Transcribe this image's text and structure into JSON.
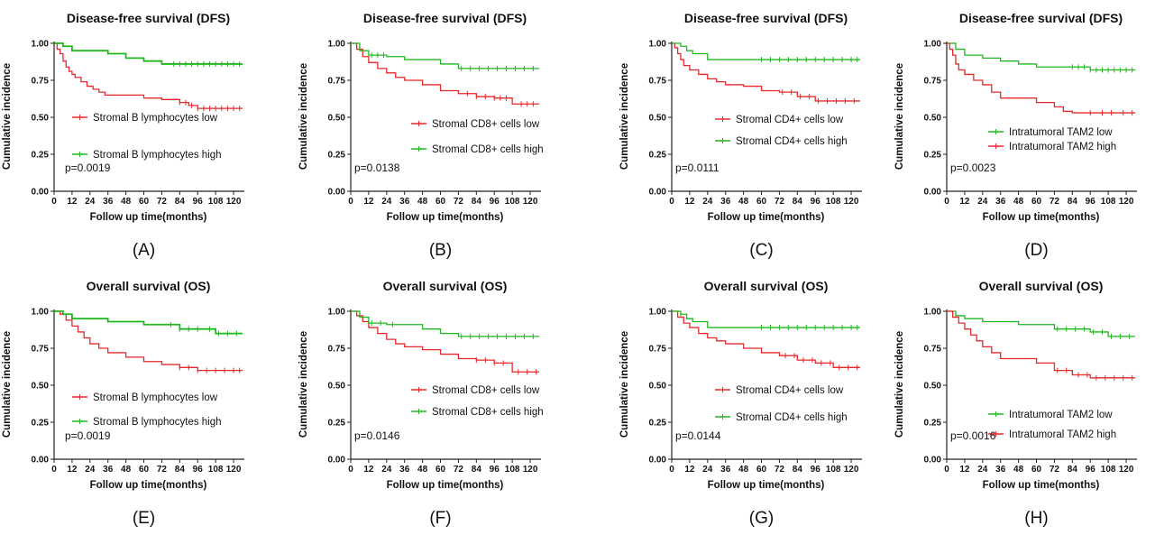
{
  "colors": {
    "low_group": "#e8292b",
    "high_group": "#21b71f",
    "axis": "#222222"
  },
  "chart_data": [
    {
      "type": "line",
      "panel_label": "(A)",
      "title": "Disease-free survival  (DFS)",
      "xlabel": "Follow up time(months)",
      "ylabel": "Cumulative incidence",
      "xlim": [
        0,
        126
      ],
      "ylim": [
        0,
        1.0
      ],
      "xticks": [
        0,
        12,
        24,
        36,
        48,
        60,
        72,
        84,
        96,
        108,
        120
      ],
      "yticks": [
        "0.00",
        "0.25",
        "0.50",
        "0.75",
        "1.00"
      ],
      "p_value": "p=0.0019",
      "series": [
        {
          "name": "Stromal B lymphocytes  low",
          "color": "#e8292b",
          "x": [
            0,
            2,
            4,
            6,
            8,
            10,
            12,
            14,
            18,
            22,
            26,
            30,
            34,
            42,
            60,
            72,
            84,
            90,
            96,
            126
          ],
          "y": [
            1.0,
            0.96,
            0.93,
            0.88,
            0.84,
            0.81,
            0.79,
            0.77,
            0.74,
            0.71,
            0.69,
            0.67,
            0.65,
            0.65,
            0.63,
            0.62,
            0.6,
            0.58,
            0.56,
            0.56
          ],
          "censor_x": [
            84,
            88,
            92,
            96,
            100,
            104,
            108,
            112,
            116,
            120,
            124
          ]
        },
        {
          "name": "Stromal B lymphocytes high",
          "color": "#21b71f",
          "x": [
            0,
            6,
            12,
            36,
            48,
            60,
            72,
            126
          ],
          "y": [
            1.0,
            0.98,
            0.95,
            0.93,
            0.9,
            0.88,
            0.86,
            0.86
          ],
          "censor_x": [
            80,
            84,
            88,
            92,
            96,
            100,
            104,
            108,
            112,
            116,
            120,
            124
          ]
        }
      ]
    },
    {
      "type": "line",
      "panel_label": "(B)",
      "title": "Disease-free survival (DFS)",
      "xlabel": "Follow up time(months)",
      "ylabel": "Cumulative incidence",
      "xlim": [
        0,
        126
      ],
      "ylim": [
        0,
        1.0
      ],
      "xticks": [
        0,
        12,
        24,
        36,
        48,
        60,
        72,
        84,
        96,
        108,
        120
      ],
      "yticks": [
        "0.00",
        "0.25",
        "0.50",
        "0.75",
        "1.00"
      ],
      "p_value": "p=0.0138",
      "series": [
        {
          "name": "Stromal CD8+ cells low",
          "color": "#e8292b",
          "x": [
            0,
            4,
            8,
            12,
            18,
            24,
            30,
            36,
            48,
            60,
            72,
            84,
            96,
            108,
            126
          ],
          "y": [
            1.0,
            0.96,
            0.91,
            0.87,
            0.83,
            0.8,
            0.77,
            0.75,
            0.72,
            0.68,
            0.66,
            0.64,
            0.63,
            0.59,
            0.59
          ],
          "censor_x": [
            78,
            84,
            90,
            96,
            100,
            104,
            114,
            118,
            122
          ]
        },
        {
          "name": "Stromal CD8+ cells high",
          "color": "#21b71f",
          "x": [
            0,
            6,
            12,
            24,
            36,
            60,
            72,
            126
          ],
          "y": [
            1.0,
            0.95,
            0.92,
            0.91,
            0.89,
            0.86,
            0.83,
            0.83
          ],
          "censor_x": [
            14,
            18,
            22,
            74,
            80,
            86,
            92,
            98,
            104,
            110,
            116,
            122
          ]
        }
      ]
    },
    {
      "type": "line",
      "panel_label": "(C)",
      "title": "Disease-free survival (DFS)",
      "xlabel": "Follow up time(months)",
      "ylabel": "Cumulative incidence",
      "xlim": [
        0,
        126
      ],
      "ylim": [
        0,
        1.0
      ],
      "xticks": [
        0,
        12,
        24,
        36,
        48,
        60,
        72,
        84,
        96,
        108,
        120
      ],
      "yticks": [
        "0.00",
        "0.25",
        "0.50",
        "0.75",
        "1.00"
      ],
      "p_value": "p=0.0111",
      "series": [
        {
          "name": "Stromal CD4+ cells low",
          "color": "#e8292b",
          "x": [
            0,
            2,
            4,
            6,
            8,
            12,
            18,
            24,
            30,
            36,
            48,
            60,
            72,
            84,
            96,
            126
          ],
          "y": [
            1.0,
            0.97,
            0.93,
            0.89,
            0.85,
            0.82,
            0.79,
            0.76,
            0.74,
            0.72,
            0.71,
            0.68,
            0.67,
            0.64,
            0.61,
            0.61
          ],
          "censor_x": [
            74,
            80,
            86,
            92,
            98,
            104,
            110,
            116,
            122
          ]
        },
        {
          "name": "Stromal CD4+ cells high",
          "color": "#21b71f",
          "x": [
            0,
            6,
            10,
            14,
            24,
            126
          ],
          "y": [
            1.0,
            0.98,
            0.95,
            0.93,
            0.89,
            0.89
          ],
          "censor_x": [
            60,
            66,
            72,
            78,
            84,
            90,
            96,
            102,
            108,
            114,
            120,
            124
          ]
        }
      ]
    },
    {
      "type": "line",
      "panel_label": "(D)",
      "title": "Disease-free survival  (DFS)",
      "xlabel": "Follow up time(months)",
      "ylabel": "Cumulative incidence",
      "xlim": [
        0,
        126
      ],
      "ylim": [
        0,
        1.0
      ],
      "xticks": [
        0,
        12,
        24,
        36,
        48,
        60,
        72,
        84,
        96,
        108,
        120
      ],
      "yticks": [
        "0.00",
        "0.25",
        "0.50",
        "0.75",
        "1.00"
      ],
      "p_value": "p=0.0023",
      "series": [
        {
          "name": "Intratumoral TAM2 low",
          "color": "#21b71f",
          "x": [
            0,
            6,
            12,
            24,
            36,
            48,
            60,
            84,
            96,
            126
          ],
          "y": [
            1.0,
            0.96,
            0.92,
            0.9,
            0.88,
            0.86,
            0.84,
            0.84,
            0.82,
            0.82
          ],
          "censor_x": [
            84,
            88,
            92,
            96,
            100,
            104,
            108,
            112,
            116,
            120,
            124
          ]
        },
        {
          "name": "Intratumoral TAM2 high",
          "color": "#e8292b",
          "x": [
            0,
            2,
            4,
            6,
            8,
            12,
            18,
            24,
            30,
            36,
            48,
            60,
            72,
            78,
            84,
            126
          ],
          "y": [
            1.0,
            0.96,
            0.92,
            0.86,
            0.82,
            0.79,
            0.75,
            0.72,
            0.67,
            0.63,
            0.63,
            0.6,
            0.57,
            0.54,
            0.53,
            0.53
          ],
          "censor_x": [
            96,
            104,
            110,
            118,
            124
          ]
        }
      ]
    },
    {
      "type": "line",
      "panel_label": "(E)",
      "title": "Overall survival  (OS)",
      "xlabel": "Follow up time(months)",
      "ylabel": "Cumulative incidence",
      "xlim": [
        0,
        126
      ],
      "ylim": [
        0,
        1.0
      ],
      "xticks": [
        0,
        12,
        24,
        36,
        48,
        60,
        72,
        84,
        96,
        108,
        120
      ],
      "yticks": [
        "0.00",
        "0.25",
        "0.50",
        "0.75",
        "1.00"
      ],
      "p_value": "p=0.0019",
      "series": [
        {
          "name": "Stromal B lymphocytes low",
          "color": "#e8292b",
          "x": [
            0,
            4,
            8,
            12,
            16,
            20,
            24,
            30,
            36,
            48,
            60,
            72,
            84,
            96,
            126
          ],
          "y": [
            1.0,
            0.98,
            0.94,
            0.9,
            0.86,
            0.82,
            0.78,
            0.75,
            0.72,
            0.69,
            0.66,
            0.64,
            0.62,
            0.6,
            0.6
          ],
          "censor_x": [
            84,
            90,
            96,
            102,
            108,
            114,
            120,
            124
          ]
        },
        {
          "name": "Stromal B lymphocytes high",
          "color": "#21b71f",
          "x": [
            0,
            6,
            12,
            36,
            60,
            84,
            108,
            126
          ],
          "y": [
            1.0,
            0.98,
            0.95,
            0.93,
            0.91,
            0.88,
            0.85,
            0.85
          ],
          "censor_x": [
            78,
            84,
            90,
            96,
            104,
            110,
            116,
            122
          ]
        }
      ]
    },
    {
      "type": "line",
      "panel_label": "(F)",
      "title": "Overall survival (OS)",
      "xlabel": "Follow up time(months)",
      "ylabel": "Cumulative incidence",
      "xlim": [
        0,
        126
      ],
      "ylim": [
        0,
        1.0
      ],
      "xticks": [
        0,
        12,
        24,
        36,
        48,
        60,
        72,
        84,
        96,
        108,
        120
      ],
      "yticks": [
        "0.00",
        "0.25",
        "0.50",
        "0.75",
        "1.00"
      ],
      "p_value": "p=0.0146",
      "series": [
        {
          "name": "Stromal CD8+ cells low",
          "color": "#e8292b",
          "x": [
            0,
            4,
            8,
            12,
            18,
            24,
            30,
            36,
            48,
            60,
            72,
            84,
            96,
            108,
            126
          ],
          "y": [
            1.0,
            0.97,
            0.93,
            0.89,
            0.85,
            0.81,
            0.78,
            0.76,
            0.74,
            0.71,
            0.68,
            0.67,
            0.65,
            0.59,
            0.59
          ],
          "censor_x": [
            84,
            90,
            96,
            102,
            112,
            118,
            124
          ]
        },
        {
          "name": "Stromal CD8+ cells high",
          "color": "#21b71f",
          "x": [
            0,
            6,
            12,
            24,
            48,
            60,
            72,
            126
          ],
          "y": [
            1.0,
            0.96,
            0.92,
            0.91,
            0.88,
            0.85,
            0.83,
            0.83
          ],
          "censor_x": [
            14,
            20,
            28,
            74,
            80,
            86,
            92,
            98,
            104,
            110,
            116,
            122
          ]
        }
      ]
    },
    {
      "type": "line",
      "panel_label": "(G)",
      "title": "Overall survival (OS)",
      "xlabel": "Follow up time(months)",
      "ylabel": "Cumulative incidence",
      "xlim": [
        0,
        126
      ],
      "ylim": [
        0,
        1.0
      ],
      "xticks": [
        0,
        12,
        24,
        36,
        48,
        60,
        72,
        84,
        96,
        108,
        120
      ],
      "yticks": [
        "0.00",
        "0.25",
        "0.50",
        "0.75",
        "1.00"
      ],
      "p_value": "p=0.0144",
      "series": [
        {
          "name": "Stromal CD4+ cells low",
          "color": "#e8292b",
          "x": [
            0,
            4,
            8,
            12,
            18,
            24,
            30,
            36,
            48,
            60,
            72,
            84,
            96,
            108,
            126
          ],
          "y": [
            1.0,
            0.96,
            0.92,
            0.89,
            0.85,
            0.82,
            0.8,
            0.78,
            0.75,
            0.72,
            0.7,
            0.67,
            0.65,
            0.62,
            0.62
          ],
          "censor_x": [
            76,
            82,
            88,
            94,
            100,
            106,
            112,
            118,
            124
          ]
        },
        {
          "name": "Stromal CD4+ cells high",
          "color": "#21b71f",
          "x": [
            0,
            6,
            10,
            14,
            24,
            126
          ],
          "y": [
            1.0,
            0.98,
            0.95,
            0.93,
            0.89,
            0.89
          ],
          "censor_x": [
            6,
            60,
            66,
            72,
            78,
            84,
            90,
            96,
            102,
            108,
            114,
            120,
            124
          ]
        }
      ]
    },
    {
      "type": "line",
      "panel_label": "(H)",
      "title": "Overall survival  (OS)",
      "xlabel": "Follow up time(months)",
      "ylabel": "Cumulative incidence",
      "xlim": [
        0,
        126
      ],
      "ylim": [
        0,
        1.0
      ],
      "xticks": [
        0,
        12,
        24,
        36,
        48,
        60,
        72,
        84,
        96,
        108,
        120
      ],
      "yticks": [
        "0.00",
        "0.25",
        "0.50",
        "0.75",
        "1.00"
      ],
      "p_value": "p=0.0016",
      "series": [
        {
          "name": "Intratumoral TAM2 low",
          "color": "#21b71f",
          "x": [
            0,
            6,
            12,
            24,
            48,
            72,
            96,
            108,
            126
          ],
          "y": [
            1.0,
            0.97,
            0.95,
            0.93,
            0.91,
            0.88,
            0.86,
            0.83,
            0.83
          ],
          "censor_x": [
            74,
            80,
            86,
            92,
            98,
            104,
            110,
            116,
            122
          ]
        },
        {
          "name": "Intratumoral TAM2 high",
          "color": "#e8292b",
          "x": [
            0,
            4,
            8,
            12,
            16,
            20,
            24,
            30,
            36,
            60,
            72,
            84,
            96,
            126
          ],
          "y": [
            1.0,
            0.96,
            0.92,
            0.88,
            0.84,
            0.8,
            0.76,
            0.72,
            0.68,
            0.65,
            0.6,
            0.57,
            0.55,
            0.55
          ],
          "censor_x": [
            74,
            80,
            88,
            94,
            100,
            106,
            112,
            118,
            124
          ]
        }
      ]
    }
  ]
}
